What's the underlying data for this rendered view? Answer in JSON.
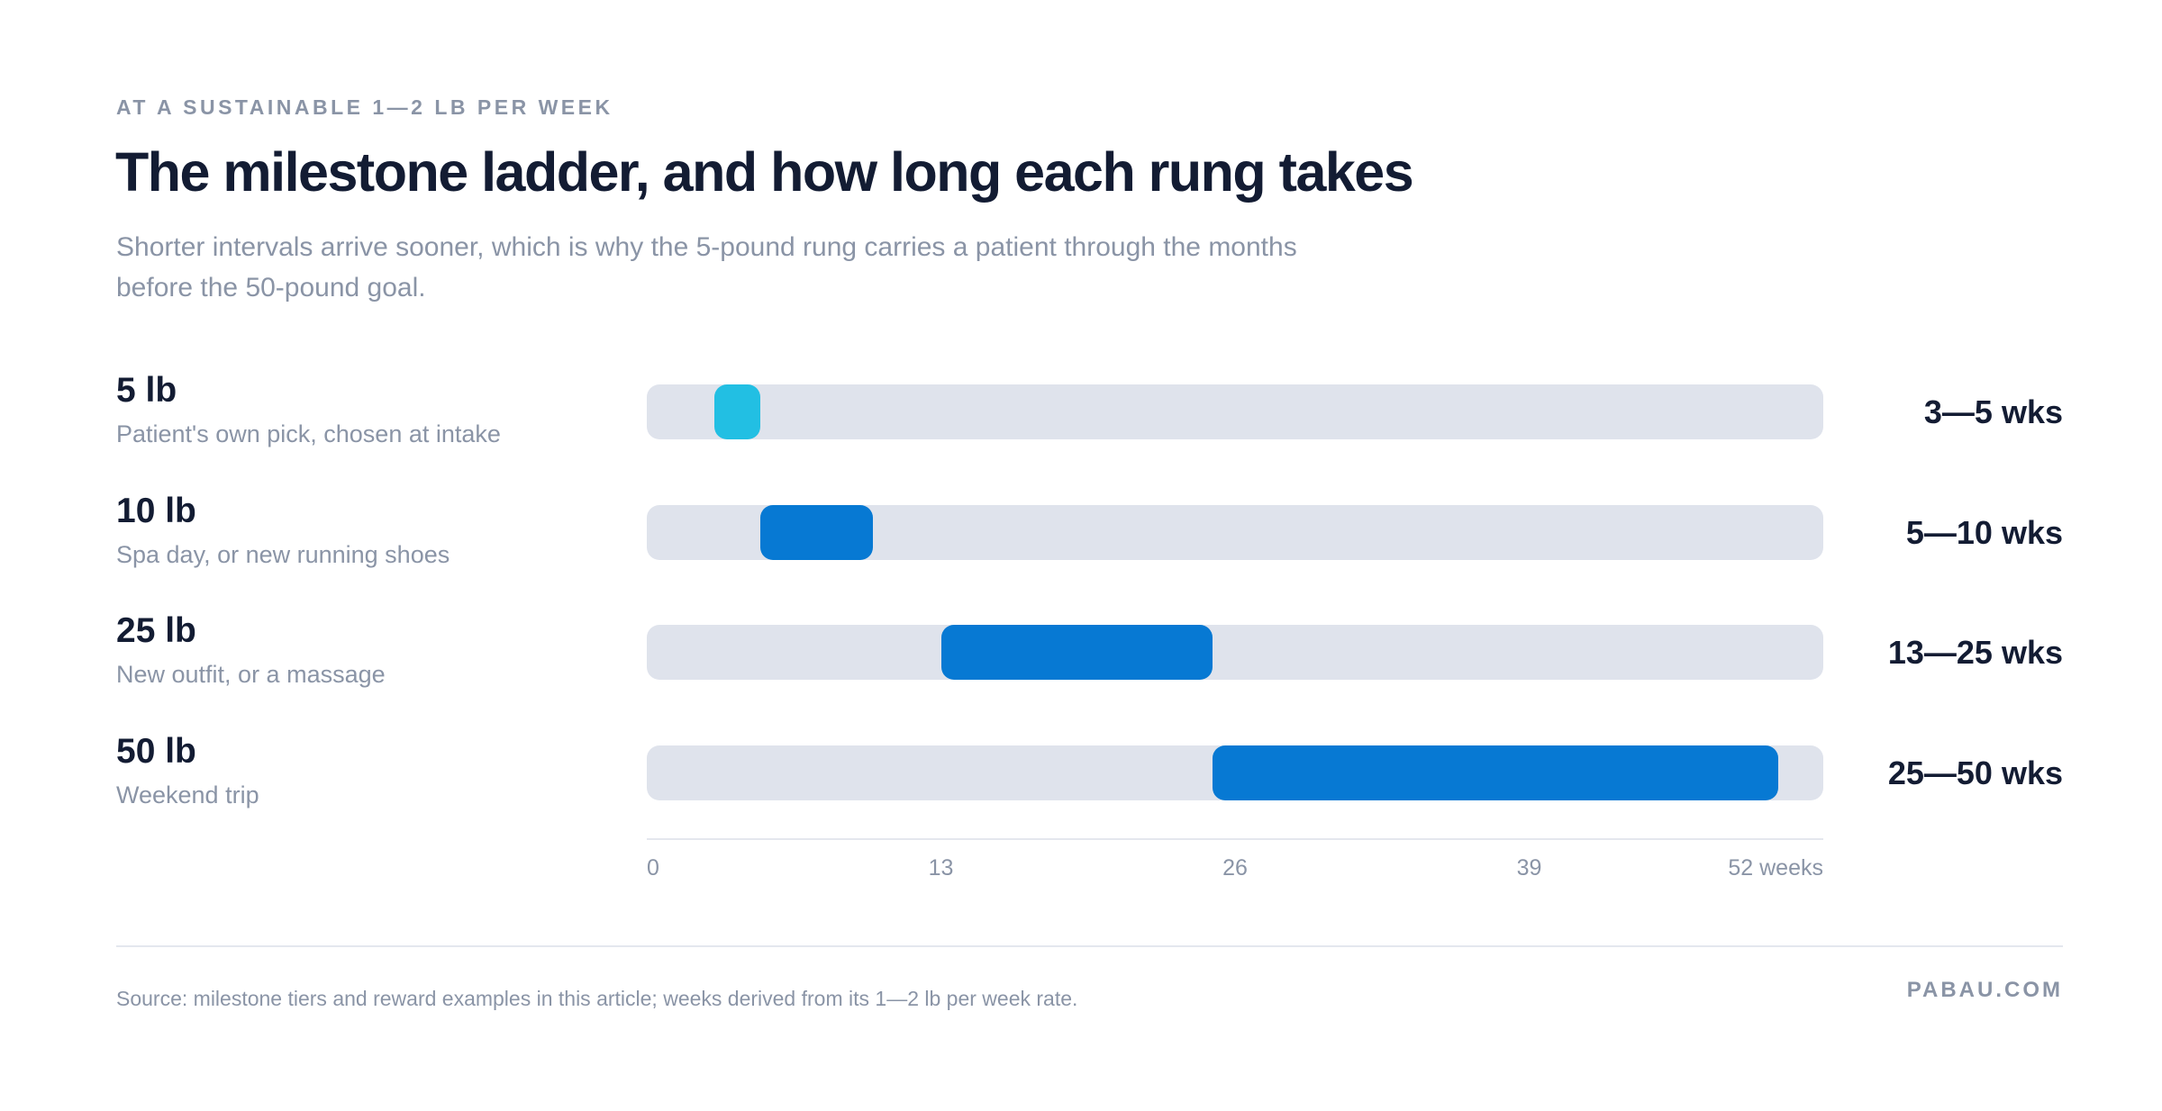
{
  "eyebrow": "AT A SUSTAINABLE 1—2 LB PER WEEK",
  "title": "The milestone ladder, and how long each rung takes",
  "subtitle": "Shorter intervals arrive sooner, which is why the 5-pound rung carries a patient through the months before the 50-pound goal.",
  "colors": {
    "first_rung": "#22bfe3",
    "rung": "#0779d3",
    "track": "#dfe3ec"
  },
  "chart_data": {
    "type": "bar",
    "orientation": "horizontal-range",
    "xlim": [
      0,
      52
    ],
    "x_ticks": [
      "0",
      "13",
      "26",
      "39",
      "52 weeks"
    ],
    "x_tick_values": [
      0,
      13,
      26,
      39,
      52
    ],
    "rows": [
      {
        "weight": "5 lb",
        "reward": "Patient's own pick, chosen at intake",
        "start": 3,
        "end": 5,
        "range_label": "3—5 wks"
      },
      {
        "weight": "10 lb",
        "reward": "Spa day, or new running shoes",
        "start": 5,
        "end": 10,
        "range_label": "5—10 wks"
      },
      {
        "weight": "25 lb",
        "reward": "New outfit, or a massage",
        "start": 13,
        "end": 25,
        "range_label": "13—25 wks"
      },
      {
        "weight": "50 lb",
        "reward": "Weekend trip",
        "start": 25,
        "end": 50,
        "range_label": "25—50 wks"
      }
    ]
  },
  "footer": {
    "source": "Source: milestone tiers and reward examples in this article; weeks derived from its 1—2 lb per week rate.",
    "brand": "PABAU.COM"
  }
}
